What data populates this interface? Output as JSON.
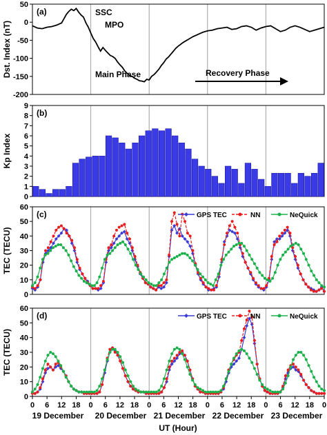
{
  "chart_data": [
    {
      "panel": "(a)",
      "type": "line",
      "ylabel": "Dst. Index (nT)",
      "ylim": [
        -200,
        50
      ],
      "yticks": [
        50,
        0,
        -50,
        -100,
        -150,
        -200
      ],
      "xlim": [
        0,
        120
      ],
      "grid": "vertical day separators",
      "series": [
        {
          "color": "#000000",
          "x": [
            0,
            2,
            4,
            6,
            8,
            10,
            12,
            13,
            14,
            15,
            16,
            17,
            18,
            19,
            20,
            21,
            22,
            23,
            24,
            25,
            26,
            27,
            28,
            29,
            30,
            31,
            32,
            33,
            34,
            35,
            36,
            37,
            38,
            39,
            40,
            41,
            42,
            43,
            44,
            45,
            46,
            47,
            48,
            49,
            50,
            51,
            52,
            53,
            54,
            55,
            56,
            57,
            58,
            59,
            60,
            62,
            64,
            66,
            68,
            70,
            72,
            74,
            76,
            78,
            80,
            82,
            84,
            86,
            88,
            90,
            92,
            94,
            96,
            98,
            100,
            102,
            104,
            106,
            108,
            110,
            112,
            114,
            116,
            118,
            120
          ],
          "y": [
            -10,
            -16,
            -18,
            -14,
            -12,
            -8,
            -2,
            10,
            22,
            30,
            36,
            32,
            38,
            28,
            20,
            14,
            -2,
            -14,
            -30,
            -45,
            -55,
            -68,
            -80,
            -70,
            -78,
            -85,
            -92,
            -95,
            -100,
            -110,
            -118,
            -125,
            -135,
            -142,
            -148,
            -150,
            -155,
            -158,
            -162,
            -163,
            -165,
            -158,
            -160,
            -150,
            -145,
            -138,
            -130,
            -120,
            -112,
            -102,
            -96,
            -88,
            -80,
            -72,
            -66,
            -56,
            -48,
            -40,
            -34,
            -28,
            -24,
            -22,
            -18,
            -16,
            -14,
            -20,
            -18,
            -12,
            -10,
            -14,
            -22,
            -16,
            -12,
            -10,
            -18,
            -26,
            -22,
            -14,
            -10,
            -14,
            -20,
            -26,
            -22,
            -18,
            -14
          ]
        }
      ],
      "annotations": [
        "SSC",
        "MPO",
        "Main Phase",
        "Recovery Phase"
      ]
    },
    {
      "panel": "(b)",
      "type": "bar",
      "ylabel": "Kp Index",
      "ylim": [
        0,
        9
      ],
      "yticks": [
        0,
        1,
        2,
        3,
        4,
        5,
        6,
        7,
        8,
        9
      ],
      "bar_color": "#3a3ae6",
      "bar_hours": 3,
      "values": [
        1.0,
        0.7,
        0.3,
        0.7,
        0.7,
        1.0,
        3.3,
        3.7,
        3.9,
        4.0,
        4.0,
        6.0,
        5.8,
        5.3,
        4.7,
        5.3,
        6.0,
        6.5,
        6.7,
        6.5,
        6.7,
        6.0,
        5.3,
        4.7,
        3.7,
        3.0,
        2.7,
        2.0,
        1.3,
        3.0,
        2.7,
        1.3,
        3.3,
        2.7,
        1.7,
        1.0,
        2.3,
        2.3,
        2.3,
        1.3,
        2.3,
        2.0,
        2.3,
        3.3
      ]
    },
    {
      "panel": "(c)",
      "type": "line",
      "ylabel": "TEC (TECU)",
      "ylim": [
        0,
        60
      ],
      "yticks": [
        0,
        10,
        20,
        30,
        40,
        50,
        60
      ],
      "legend": "top-right",
      "series": [
        {
          "name": "GPS TEC",
          "color": "#3a3ad6",
          "marker": "diamond",
          "values": [
            4,
            3,
            5,
            10,
            22,
            28,
            30,
            32,
            35,
            38,
            40,
            42,
            45,
            44,
            40,
            35,
            30,
            22,
            17,
            14,
            11,
            9,
            6,
            4,
            4,
            3,
            4,
            8,
            22,
            30,
            32,
            35,
            38,
            40,
            42,
            43,
            38,
            35,
            30,
            24,
            19,
            14,
            11,
            8,
            7,
            5,
            4,
            3,
            5,
            4,
            5,
            8,
            26,
            44,
            47,
            42,
            45,
            40,
            38,
            36,
            33,
            28,
            20,
            14,
            10,
            7,
            5,
            3,
            3,
            4,
            5,
            12,
            22,
            36,
            40,
            44,
            43,
            42,
            38,
            32,
            26,
            22,
            18,
            14,
            10,
            7,
            5,
            4,
            3,
            5,
            10,
            24,
            36,
            38,
            38,
            40,
            42,
            44,
            40,
            30,
            24,
            18,
            14,
            10,
            7,
            5,
            4,
            3,
            2,
            3,
            5,
            2
          ]
        },
        {
          "name": "NN",
          "color": "#e81e1e",
          "marker": "circle",
          "dash": "4,2",
          "values": [
            5,
            4,
            6,
            10,
            24,
            30,
            32,
            36,
            40,
            44,
            46,
            47,
            45,
            42,
            40,
            37,
            32,
            24,
            18,
            14,
            11,
            8,
            6,
            4,
            4,
            4,
            6,
            9,
            24,
            32,
            34,
            40,
            44,
            46,
            47,
            48,
            42,
            38,
            32,
            26,
            20,
            15,
            11,
            8,
            7,
            5,
            4,
            3,
            6,
            6,
            8,
            10,
            27,
            50,
            56,
            48,
            40,
            55,
            50,
            42,
            40,
            30,
            21,
            15,
            11,
            8,
            5,
            4,
            3,
            3,
            6,
            14,
            24,
            34,
            42,
            47,
            50,
            46,
            42,
            34,
            28,
            22,
            18,
            15,
            11,
            8,
            6,
            4,
            4,
            6,
            11,
            26,
            34,
            36,
            40,
            42,
            44,
            46,
            42,
            32,
            26,
            20,
            14,
            10,
            7,
            5,
            3,
            2,
            2,
            3,
            4,
            2
          ]
        },
        {
          "name": "NeQuick",
          "color": "#1cb04a",
          "marker": "circle",
          "values": [
            6,
            8,
            12,
            18,
            24,
            27,
            28,
            30,
            32,
            33,
            34,
            34,
            32,
            30,
            27,
            23,
            19,
            16,
            13,
            11,
            9,
            8,
            7,
            6,
            6,
            8,
            12,
            18,
            24,
            27,
            28,
            30,
            32,
            34,
            35,
            36,
            34,
            31,
            28,
            24,
            20,
            17,
            14,
            12,
            10,
            8,
            7,
            6,
            6,
            8,
            10,
            14,
            18,
            22,
            24,
            25,
            26,
            27,
            28,
            28,
            27,
            25,
            23,
            20,
            17,
            14,
            12,
            10,
            8,
            7,
            6,
            10,
            14,
            20,
            24,
            27,
            29,
            31,
            33,
            34,
            35,
            35,
            33,
            30,
            27,
            24,
            21,
            18,
            15,
            13,
            11,
            10,
            9,
            11,
            15,
            20,
            24,
            27,
            29,
            31,
            33,
            34,
            35,
            34,
            31,
            28,
            24,
            20,
            16,
            13,
            10,
            8,
            6,
            5
          ]
        }
      ]
    },
    {
      "panel": "(d)",
      "type": "line",
      "ylabel": "TEC (TECU)",
      "ylim": [
        0,
        60
      ],
      "yticks": [
        0,
        10,
        20,
        30,
        40,
        50,
        60
      ],
      "legend": "top-right",
      "series": [
        {
          "name": "GPS TEC",
          "color": "#3a3ad6",
          "marker": "diamond",
          "values": [
            2,
            2,
            3,
            5,
            10,
            16,
            19,
            20,
            18,
            20,
            21,
            19,
            17,
            14,
            10,
            7,
            5,
            4,
            3,
            3,
            2,
            2,
            2,
            2,
            2,
            2,
            3,
            8,
            16,
            24,
            30,
            33,
            31,
            28,
            24,
            19,
            14,
            10,
            7,
            5,
            4,
            3,
            3,
            3,
            2,
            2,
            2,
            2,
            2,
            2,
            3,
            6,
            10,
            18,
            22,
            24,
            26,
            29,
            30,
            28,
            24,
            18,
            12,
            7,
            5,
            3,
            3,
            2,
            2,
            2,
            2,
            2,
            2,
            3,
            5,
            10,
            16,
            20,
            22,
            24,
            26,
            32,
            40,
            48,
            53,
            49,
            36,
            22,
            12,
            7,
            4,
            3,
            2,
            2,
            2,
            2,
            3,
            6,
            12,
            16,
            19,
            20,
            18,
            17,
            14,
            11,
            8,
            6,
            4,
            3,
            2,
            2,
            2,
            2
          ]
        },
        {
          "name": "NN",
          "color": "#e81e1e",
          "marker": "circle",
          "dash": "4,2",
          "values": [
            2,
            2,
            3,
            6,
            12,
            18,
            22,
            20,
            18,
            22,
            23,
            20,
            17,
            14,
            10,
            7,
            5,
            4,
            3,
            3,
            2,
            2,
            2,
            2,
            2,
            2,
            3,
            8,
            18,
            26,
            32,
            33,
            30,
            28,
            24,
            19,
            14,
            10,
            7,
            5,
            4,
            3,
            3,
            3,
            2,
            2,
            2,
            2,
            2,
            2,
            3,
            6,
            12,
            20,
            24,
            26,
            28,
            30,
            31,
            28,
            24,
            18,
            12,
            7,
            5,
            3,
            3,
            2,
            2,
            2,
            2,
            2,
            2,
            3,
            6,
            12,
            18,
            22,
            25,
            28,
            30,
            38,
            46,
            52,
            58,
            54,
            38,
            22,
            12,
            7,
            4,
            3,
            2,
            2,
            2,
            2,
            3,
            7,
            14,
            18,
            21,
            22,
            20,
            18,
            15,
            11,
            8,
            6,
            4,
            3,
            2,
            2,
            2,
            2
          ]
        },
        {
          "name": "NeQuick",
          "color": "#1cb04a",
          "marker": "circle",
          "values": [
            3,
            5,
            8,
            13,
            19,
            24,
            28,
            30,
            29,
            27,
            24,
            21,
            17,
            13,
            10,
            7,
            5,
            4,
            3,
            3,
            3,
            3,
            3,
            3,
            3,
            4,
            7,
            12,
            18,
            25,
            30,
            32,
            32,
            30,
            27,
            23,
            18,
            14,
            10,
            7,
            5,
            4,
            3,
            3,
            3,
            3,
            3,
            3,
            3,
            4,
            7,
            12,
            18,
            24,
            29,
            32,
            33,
            32,
            29,
            25,
            20,
            15,
            11,
            8,
            6,
            5,
            4,
            3,
            3,
            3,
            3,
            3,
            3,
            4,
            7,
            12,
            17,
            22,
            26,
            29,
            31,
            32,
            31,
            29,
            26,
            23,
            19,
            15,
            11,
            8,
            6,
            5,
            4,
            3,
            3,
            3,
            3,
            5,
            9,
            14,
            20,
            25,
            28,
            30,
            30,
            28,
            25,
            21,
            17,
            13,
            10,
            7,
            5,
            4
          ]
        }
      ]
    }
  ],
  "x_axis": {
    "label": "UT (Hour)",
    "tick_labels": [
      "0",
      "6",
      "12",
      "18",
      "0",
      "6",
      "12",
      "18",
      "0",
      "6",
      "12",
      "18",
      "0",
      "6",
      "12",
      "18",
      "0",
      "6",
      "12",
      "18",
      "0"
    ],
    "day_labels": [
      "19 December",
      "20 December",
      "21 December",
      "22 December",
      "23 December"
    ]
  }
}
